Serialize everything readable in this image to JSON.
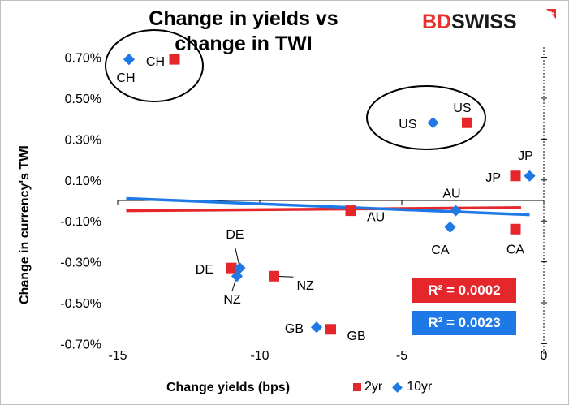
{
  "chart_data": {
    "type": "scatter",
    "title": "Change in yields vs change in TWI",
    "title_lines": [
      "Change in yields vs",
      "change in TWI"
    ],
    "xlabel": "Change yields (bps)",
    "ylabel": "Change in currency's  TWI",
    "xlim": [
      -15,
      0
    ],
    "ylim": [
      -0.75,
      0.75
    ],
    "x_ticks": [
      -15,
      -10,
      -5,
      0
    ],
    "x_tick_labels": [
      "-15",
      "-10",
      "-5",
      "0"
    ],
    "y_ticks": [
      0.7,
      0.5,
      0.3,
      0.1,
      -0.1,
      -0.3,
      -0.5,
      -0.7
    ],
    "y_tick_labels": [
      "0.70%",
      "0.50%",
      "0.30%",
      "0.10%",
      "-0.10%",
      "-0.30%",
      "-0.50%",
      "-0.70%"
    ],
    "legend_position": "bottom-right",
    "series": [
      {
        "name": "2yr",
        "marker": "square",
        "color": "#e5262b",
        "points": [
          {
            "label": "CH",
            "x": -13.0,
            "y": 0.69
          },
          {
            "label": "US",
            "x": -2.7,
            "y": 0.38
          },
          {
            "label": "JP",
            "x": -1.0,
            "y": 0.12
          },
          {
            "label": "AU",
            "x": -6.8,
            "y": -0.05
          },
          {
            "label": "CA",
            "x": -1.0,
            "y": -0.14
          },
          {
            "label": "DE",
            "x": -11.0,
            "y": -0.33
          },
          {
            "label": "NZ",
            "x": -9.5,
            "y": -0.37
          },
          {
            "label": "GB",
            "x": -7.5,
            "y": -0.63
          }
        ],
        "trendline": {
          "x0": -14.7,
          "y0": -0.05,
          "x1": -0.8,
          "y1": -0.035
        },
        "r2_label": "R² = 0.0002"
      },
      {
        "name": "10yr",
        "marker": "diamond",
        "color": "#1e78e6",
        "points": [
          {
            "label": "CH",
            "x": -14.6,
            "y": 0.69
          },
          {
            "label": "US",
            "x": -3.9,
            "y": 0.38
          },
          {
            "label": "JP",
            "x": -0.5,
            "y": 0.12
          },
          {
            "label": "AU",
            "x": -3.1,
            "y": -0.05
          },
          {
            "label": "CA",
            "x": -3.3,
            "y": -0.13
          },
          {
            "label": "DE",
            "x": -10.7,
            "y": -0.33
          },
          {
            "label": "NZ",
            "x": -10.8,
            "y": -0.37
          },
          {
            "label": "GB",
            "x": -8.0,
            "y": -0.62
          }
        ],
        "trendline": {
          "x0": -14.7,
          "y0": 0.01,
          "x1": -0.5,
          "y1": -0.07
        },
        "r2_label": "R² = 0.0023"
      }
    ]
  },
  "brand": {
    "part1": "BD",
    "part2": "SWISS",
    "accent_color": "#e5322d"
  },
  "colors": {
    "red": "#e5262b",
    "blue": "#1e78e6"
  }
}
